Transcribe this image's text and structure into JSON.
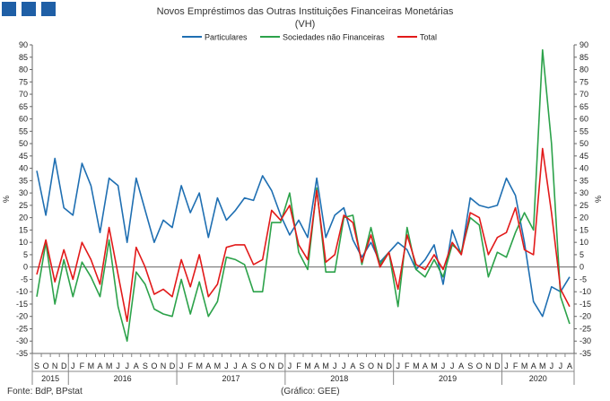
{
  "chart_data": {
    "type": "line",
    "title": "Novos Empréstimos das Outras Instituições Financeiras Monetárias",
    "subtitle": "(VH)",
    "ylabel": "%",
    "ylim": [
      -35,
      90
    ],
    "yticks": [
      90,
      85,
      80,
      75,
      70,
      65,
      60,
      55,
      50,
      45,
      40,
      35,
      30,
      25,
      20,
      15,
      10,
      5,
      0,
      -5,
      -10,
      -15,
      -20,
      -25,
      -30,
      -35
    ],
    "x_month_labels": [
      "S",
      "O",
      "N",
      "D",
      "J",
      "F",
      "M",
      "A",
      "M",
      "J",
      "J",
      "A",
      "S",
      "O",
      "N",
      "D",
      "J",
      "F",
      "M",
      "A",
      "M",
      "J",
      "J",
      "A",
      "S",
      "O",
      "N",
      "D",
      "J",
      "F",
      "M",
      "A",
      "M",
      "J",
      "J",
      "A",
      "S",
      "O",
      "N",
      "D",
      "J",
      "F",
      "M",
      "A",
      "M",
      "J",
      "J",
      "A",
      "S",
      "O",
      "N",
      "D",
      "J",
      "F",
      "M",
      "A",
      "M",
      "J",
      "J",
      "A"
    ],
    "year_labels": [
      {
        "label": "2015",
        "start": 0,
        "end": 3
      },
      {
        "label": "2016",
        "start": 4,
        "end": 15
      },
      {
        "label": "2017",
        "start": 16,
        "end": 27
      },
      {
        "label": "2018",
        "start": 28,
        "end": 39
      },
      {
        "label": "2019",
        "start": 40,
        "end": 51
      },
      {
        "label": "2020",
        "start": 52,
        "end": 59
      }
    ],
    "legend_position": "top-center",
    "grid": false,
    "series": [
      {
        "name": "Particulares",
        "color": "#1f6fb2",
        "values": [
          39,
          21,
          44,
          24,
          21,
          42,
          33,
          14,
          36,
          33,
          10,
          36,
          23,
          10,
          19,
          16,
          33,
          22,
          30,
          12,
          28,
          19,
          23,
          28,
          27,
          37,
          31,
          21,
          13,
          19,
          12,
          36,
          12,
          21,
          24,
          11,
          4,
          10,
          2,
          6,
          10,
          7,
          -1,
          3,
          9,
          -7,
          15,
          5,
          28,
          25,
          24,
          25,
          36,
          29,
          10,
          -14,
          -20,
          -8,
          -10,
          -4
        ]
      },
      {
        "name": "Sociedades não Financeiras",
        "color": "#2ca24a",
        "values": [
          -12,
          10,
          -15,
          3,
          -12,
          2,
          -4,
          -12,
          11,
          -16,
          -30,
          -2,
          -7,
          -17,
          -19,
          -20,
          -5,
          -19,
          -6,
          -20,
          -14,
          4,
          3,
          1,
          -10,
          -10,
          18,
          18,
          30,
          6,
          -1,
          32,
          -2,
          -2,
          20,
          21,
          1,
          16,
          1,
          6,
          -16,
          16,
          -1,
          -4,
          3,
          -4,
          9,
          6,
          20,
          17,
          -4,
          6,
          4,
          14,
          22,
          15,
          88,
          50,
          -12,
          -23
        ]
      },
      {
        "name": "Total",
        "color": "#e21a1a",
        "values": [
          -3,
          11,
          -6,
          7,
          -5,
          10,
          3,
          -7,
          16,
          -3,
          -22,
          8,
          0,
          -11,
          -9,
          -12,
          3,
          -8,
          5,
          -12,
          -7,
          8,
          9,
          9,
          1,
          3,
          23,
          19,
          25,
          9,
          3,
          31,
          2,
          5,
          21,
          18,
          2,
          13,
          0,
          6,
          -9,
          13,
          1,
          -1,
          5,
          -1,
          10,
          5,
          22,
          20,
          5,
          12,
          14,
          24,
          7,
          5,
          48,
          22,
          -9,
          -16
        ]
      }
    ]
  },
  "footer_left": "Fonte: BdP, BPstat",
  "footer_center": "(Gráfico: GEE)",
  "logo_squares": 3
}
